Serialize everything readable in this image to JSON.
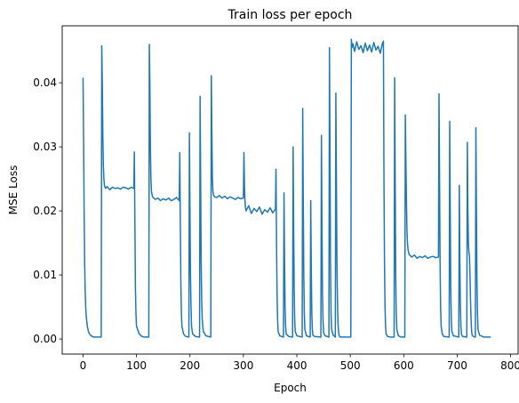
{
  "chart_data": {
    "type": "line",
    "title": "Train loss per epoch",
    "xlabel": "Epoch",
    "ylabel": "MSE Loss",
    "xlim": [
      -39,
      814
    ],
    "ylim": [
      -0.00235,
      0.0489
    ],
    "xticks": [
      0,
      100,
      200,
      300,
      400,
      500,
      600,
      700,
      800
    ],
    "xtick_labels": [
      "0",
      "100",
      "200",
      "300",
      "400",
      "500",
      "600",
      "700",
      "800"
    ],
    "yticks": [
      0.0,
      0.01,
      0.02,
      0.03,
      0.04
    ],
    "ytick_labels": [
      "0.00",
      "0.01",
      "0.02",
      "0.03",
      "0.04"
    ],
    "grid": false,
    "legend": "none",
    "series": [
      {
        "color": "#1f77b4",
        "x": [
          0,
          1,
          2,
          3,
          4,
          5,
          6,
          8,
          10,
          12,
          15,
          20,
          25,
          34,
          35,
          36,
          37,
          38,
          39,
          40,
          42,
          45,
          50,
          55,
          60,
          65,
          70,
          75,
          80,
          85,
          90,
          95,
          96,
          97,
          98,
          99,
          100,
          105,
          110,
          115,
          123,
          124,
          125,
          126,
          127,
          128,
          130,
          135,
          140,
          145,
          150,
          155,
          160,
          165,
          170,
          175,
          180,
          181,
          182,
          183,
          184,
          185,
          188,
          192,
          198,
          199,
          200,
          201,
          202,
          203,
          205,
          210,
          218,
          219,
          220,
          221,
          222,
          223,
          225,
          230,
          239,
          240,
          241,
          242,
          243,
          244,
          246,
          250,
          255,
          260,
          265,
          270,
          275,
          280,
          285,
          290,
          295,
          300,
          301,
          302,
          303,
          304,
          305,
          310,
          315,
          320,
          325,
          330,
          335,
          340,
          345,
          350,
          355,
          360,
          361,
          362,
          363,
          364,
          365,
          368,
          375,
          376,
          377,
          378,
          379,
          380,
          385,
          392,
          393,
          394,
          395,
          396,
          397,
          400,
          410,
          411,
          412,
          413,
          414,
          415,
          418,
          425,
          426,
          427,
          428,
          429,
          430,
          433,
          445,
          446,
          447,
          448,
          449,
          450,
          453,
          460,
          461,
          462,
          463,
          464,
          465,
          468,
          472,
          473,
          474,
          475,
          476,
          477,
          478,
          479,
          480,
          481,
          482,
          485,
          490,
          495,
          501,
          502,
          503,
          505,
          508,
          512,
          516,
          520,
          524,
          528,
          532,
          536,
          540,
          544,
          548,
          552,
          556,
          560,
          562,
          563,
          564,
          565,
          566,
          567,
          570,
          575,
          582,
          583,
          584,
          585,
          586,
          587,
          590,
          595,
          602,
          603,
          604,
          605,
          606,
          607,
          608,
          610,
          615,
          620,
          625,
          630,
          635,
          640,
          645,
          650,
          655,
          660,
          665,
          666,
          667,
          668,
          669,
          670,
          672,
          675,
          685,
          686,
          687,
          688,
          689,
          690,
          693,
          703,
          704,
          705,
          706,
          707,
          708,
          710,
          718,
          719,
          720,
          721,
          722,
          723,
          724,
          725,
          726,
          727,
          728,
          730,
          734,
          735,
          736,
          737,
          738,
          739,
          742,
          750,
          762
        ],
        "y": [
          0.0407,
          0.031,
          0.02,
          0.012,
          0.0075,
          0.005,
          0.0035,
          0.002,
          0.0012,
          0.0008,
          0.0005,
          0.0003,
          0.0003,
          0.0003,
          0.0458,
          0.04,
          0.032,
          0.027,
          0.025,
          0.024,
          0.0235,
          0.0238,
          0.0233,
          0.0237,
          0.0235,
          0.0236,
          0.0234,
          0.0237,
          0.0236,
          0.0234,
          0.0237,
          0.0235,
          0.0292,
          0.018,
          0.008,
          0.004,
          0.002,
          0.0008,
          0.0004,
          0.0003,
          0.0003,
          0.046,
          0.04,
          0.03,
          0.025,
          0.023,
          0.0222,
          0.0218,
          0.022,
          0.0216,
          0.0219,
          0.0217,
          0.022,
          0.0216,
          0.0218,
          0.0221,
          0.0216,
          0.0291,
          0.018,
          0.009,
          0.004,
          0.002,
          0.0008,
          0.0004,
          0.0003,
          0.0322,
          0.02,
          0.01,
          0.005,
          0.002,
          0.0008,
          0.0004,
          0.0003,
          0.0379,
          0.025,
          0.012,
          0.006,
          0.003,
          0.0012,
          0.0005,
          0.0003,
          0.0411,
          0.032,
          0.025,
          0.023,
          0.0225,
          0.0222,
          0.0221,
          0.0224,
          0.022,
          0.0223,
          0.0219,
          0.0222,
          0.022,
          0.0218,
          0.0221,
          0.0219,
          0.022,
          0.0291,
          0.024,
          0.0215,
          0.0205,
          0.02,
          0.0208,
          0.0196,
          0.0204,
          0.0199,
          0.0206,
          0.0195,
          0.0202,
          0.0198,
          0.0205,
          0.0197,
          0.0203,
          0.0265,
          0.015,
          0.007,
          0.003,
          0.0012,
          0.0005,
          0.0003,
          0.0228,
          0.012,
          0.005,
          0.002,
          0.0008,
          0.0004,
          0.0003,
          0.03,
          0.018,
          0.008,
          0.003,
          0.0012,
          0.0005,
          0.0003,
          0.036,
          0.022,
          0.01,
          0.004,
          0.0015,
          0.0005,
          0.0003,
          0.0216,
          0.011,
          0.004,
          0.0015,
          0.0006,
          0.0004,
          0.0003,
          0.0318,
          0.018,
          0.007,
          0.003,
          0.001,
          0.0005,
          0.0003,
          0.0455,
          0.03,
          0.012,
          0.004,
          0.0015,
          0.0006,
          0.0003,
          0.0384,
          0.025,
          0.012,
          0.006,
          0.0025,
          0.0012,
          0.0006,
          0.0004,
          0.0003,
          0.0003,
          0.0003,
          0.0003,
          0.0003,
          0.0003,
          0.0468,
          0.0455,
          0.0461,
          0.0449,
          0.0464,
          0.0452,
          0.0458,
          0.0447,
          0.0462,
          0.045,
          0.0459,
          0.0448,
          0.0463,
          0.0451,
          0.0457,
          0.0446,
          0.0461,
          0.0465,
          0.025,
          0.012,
          0.005,
          0.002,
          0.0008,
          0.0004,
          0.0003,
          0.0003,
          0.0408,
          0.025,
          0.01,
          0.004,
          0.0015,
          0.0005,
          0.0003,
          0.0003,
          0.035,
          0.028,
          0.022,
          0.017,
          0.015,
          0.014,
          0.0132,
          0.0128,
          0.0131,
          0.0126,
          0.0129,
          0.0127,
          0.013,
          0.0126,
          0.0128,
          0.0129,
          0.0127,
          0.0128,
          0.0383,
          0.025,
          0.012,
          0.005,
          0.002,
          0.0008,
          0.0004,
          0.0003,
          0.034,
          0.02,
          0.008,
          0.003,
          0.0012,
          0.0005,
          0.0003,
          0.024,
          0.012,
          0.005,
          0.002,
          0.0008,
          0.0004,
          0.0003,
          0.0307,
          0.02,
          0.015,
          0.0135,
          0.013,
          0.01,
          0.006,
          0.003,
          0.0012,
          0.0006,
          0.0004,
          0.0003,
          0.033,
          0.02,
          0.009,
          0.004,
          0.0015,
          0.0006,
          0.0003,
          0.0003
        ]
      }
    ]
  }
}
